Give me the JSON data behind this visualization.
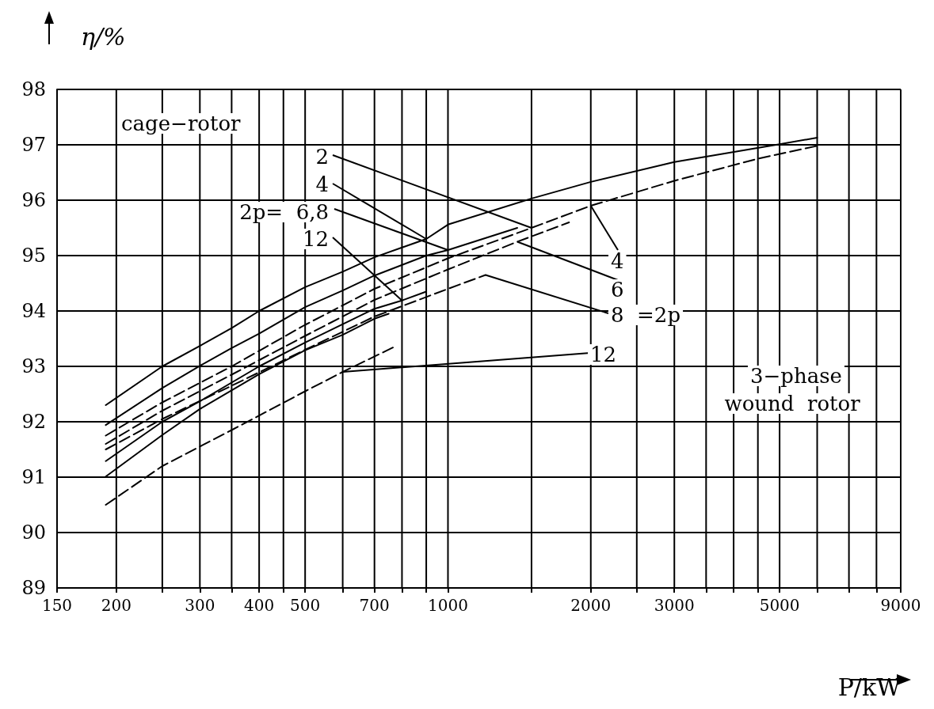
{
  "chart_data": {
    "type": "line",
    "xlabel": "P/kW",
    "ylabel": "η/%",
    "log": "x",
    "grid": true,
    "marker": "none",
    "xlim": [
      150,
      9000
    ],
    "xticks": [
      150,
      200,
      {
        "value": 250,
        "label": null
      },
      300,
      {
        "value": 350,
        "label": null
      },
      400,
      {
        "value": 450,
        "label": null
      },
      500,
      {
        "value": 600,
        "label": null
      },
      700,
      {
        "value": 800,
        "label": null
      },
      {
        "value": 900,
        "label": null
      },
      1000,
      {
        "value": 1500,
        "label": null
      },
      2000,
      {
        "value": 2500,
        "label": null
      },
      3000,
      {
        "value": 3500,
        "label": null
      },
      {
        "value": 4000,
        "label": null
      },
      {
        "value": 4500,
        "label": null
      },
      5000,
      {
        "value": 6000,
        "label": null
      },
      {
        "value": 7000,
        "label": null
      },
      {
        "value": 8000,
        "label": null
      },
      9000
    ],
    "ylim": [
      89,
      98
    ],
    "yticks": [
      89,
      90,
      91,
      92,
      93,
      94,
      95,
      96,
      97,
      98
    ],
    "series": [
      {
        "color": "#000000",
        "line_style": "solid",
        "x": [
          190,
          250,
          300,
          350,
          400,
          500,
          600,
          700,
          900,
          1000,
          1500,
          2000,
          3000,
          5000,
          6000
        ],
        "values": [
          92.3,
          93.0,
          93.37,
          93.69,
          94.0,
          94.43,
          94.71,
          94.97,
          95.3,
          95.56,
          96.03,
          96.33,
          96.69,
          97.01,
          97.13
        ]
      },
      {
        "color": "#000000",
        "line_style": "solid",
        "x": [
          190,
          250,
          300,
          350,
          400,
          500,
          600,
          700,
          900,
          1000,
          1400
        ],
        "values": [
          91.94,
          92.61,
          93.01,
          93.33,
          93.59,
          94.07,
          94.37,
          94.64,
          95.0,
          95.1,
          95.5
        ]
      },
      {
        "color": "#000000",
        "line_style": "solid",
        "x": [
          190,
          250,
          300,
          400,
          500,
          700,
          800,
          900
        ],
        "values": [
          91.29,
          92.0,
          92.37,
          93.0,
          93.43,
          94.04,
          94.19,
          94.35
        ]
      },
      {
        "color": "#000000",
        "line_style": "solid",
        "x": [
          190,
          250,
          300,
          400,
          500,
          600,
          700,
          750
        ],
        "values": [
          91.01,
          91.76,
          92.23,
          92.86,
          93.29,
          93.57,
          93.86,
          93.95
        ]
      },
      {
        "color": "#000000",
        "line_style": "dashed",
        "x": [
          190,
          250,
          350,
          500,
          700,
          1000,
          1500,
          2000,
          3000,
          4500,
          6000
        ],
        "values": [
          91.75,
          92.35,
          93.0,
          93.75,
          94.4,
          94.95,
          95.5,
          95.9,
          96.35,
          96.75,
          96.98
        ]
      },
      {
        "color": "#000000",
        "line_style": "dashed",
        "x": [
          190,
          250,
          350,
          500,
          700,
          1000,
          1400,
          1800
        ],
        "values": [
          91.6,
          92.2,
          92.85,
          93.55,
          94.2,
          94.75,
          95.25,
          95.6
        ]
      },
      {
        "color": "#000000",
        "line_style": "dashed",
        "x": [
          190,
          250,
          350,
          500,
          700,
          1000,
          1200
        ],
        "values": [
          91.5,
          92.05,
          92.65,
          93.3,
          93.9,
          94.4,
          94.65
        ]
      },
      {
        "color": "#000000",
        "line_style": "dashed",
        "x": [
          190,
          250,
          350,
          500,
          600,
          770
        ],
        "values": [
          90.5,
          91.2,
          91.85,
          92.55,
          92.9,
          93.35
        ]
      }
    ],
    "annotations": [
      "cage−rotor",
      {
        "text": "2",
        "x": 1500,
        "y": 95.5
      },
      {
        "text": "4",
        "x": 900,
        "y": 95.3
      },
      {
        "text": "2p=  6,8",
        "x": 1000,
        "y": 95.1
      },
      {
        "text": "12",
        "x": 800,
        "y": 94.19
      },
      {
        "text": "4",
        "x": 2000,
        "y": 95.9
      },
      {
        "text": "6",
        "x": 1400,
        "y": 95.25
      },
      {
        "text": "8  =2p",
        "x": 1200,
        "y": 94.65
      },
      {
        "text": "12",
        "x": 600,
        "y": 92.9
      },
      "3−phase",
      "wound  rotor"
    ]
  }
}
